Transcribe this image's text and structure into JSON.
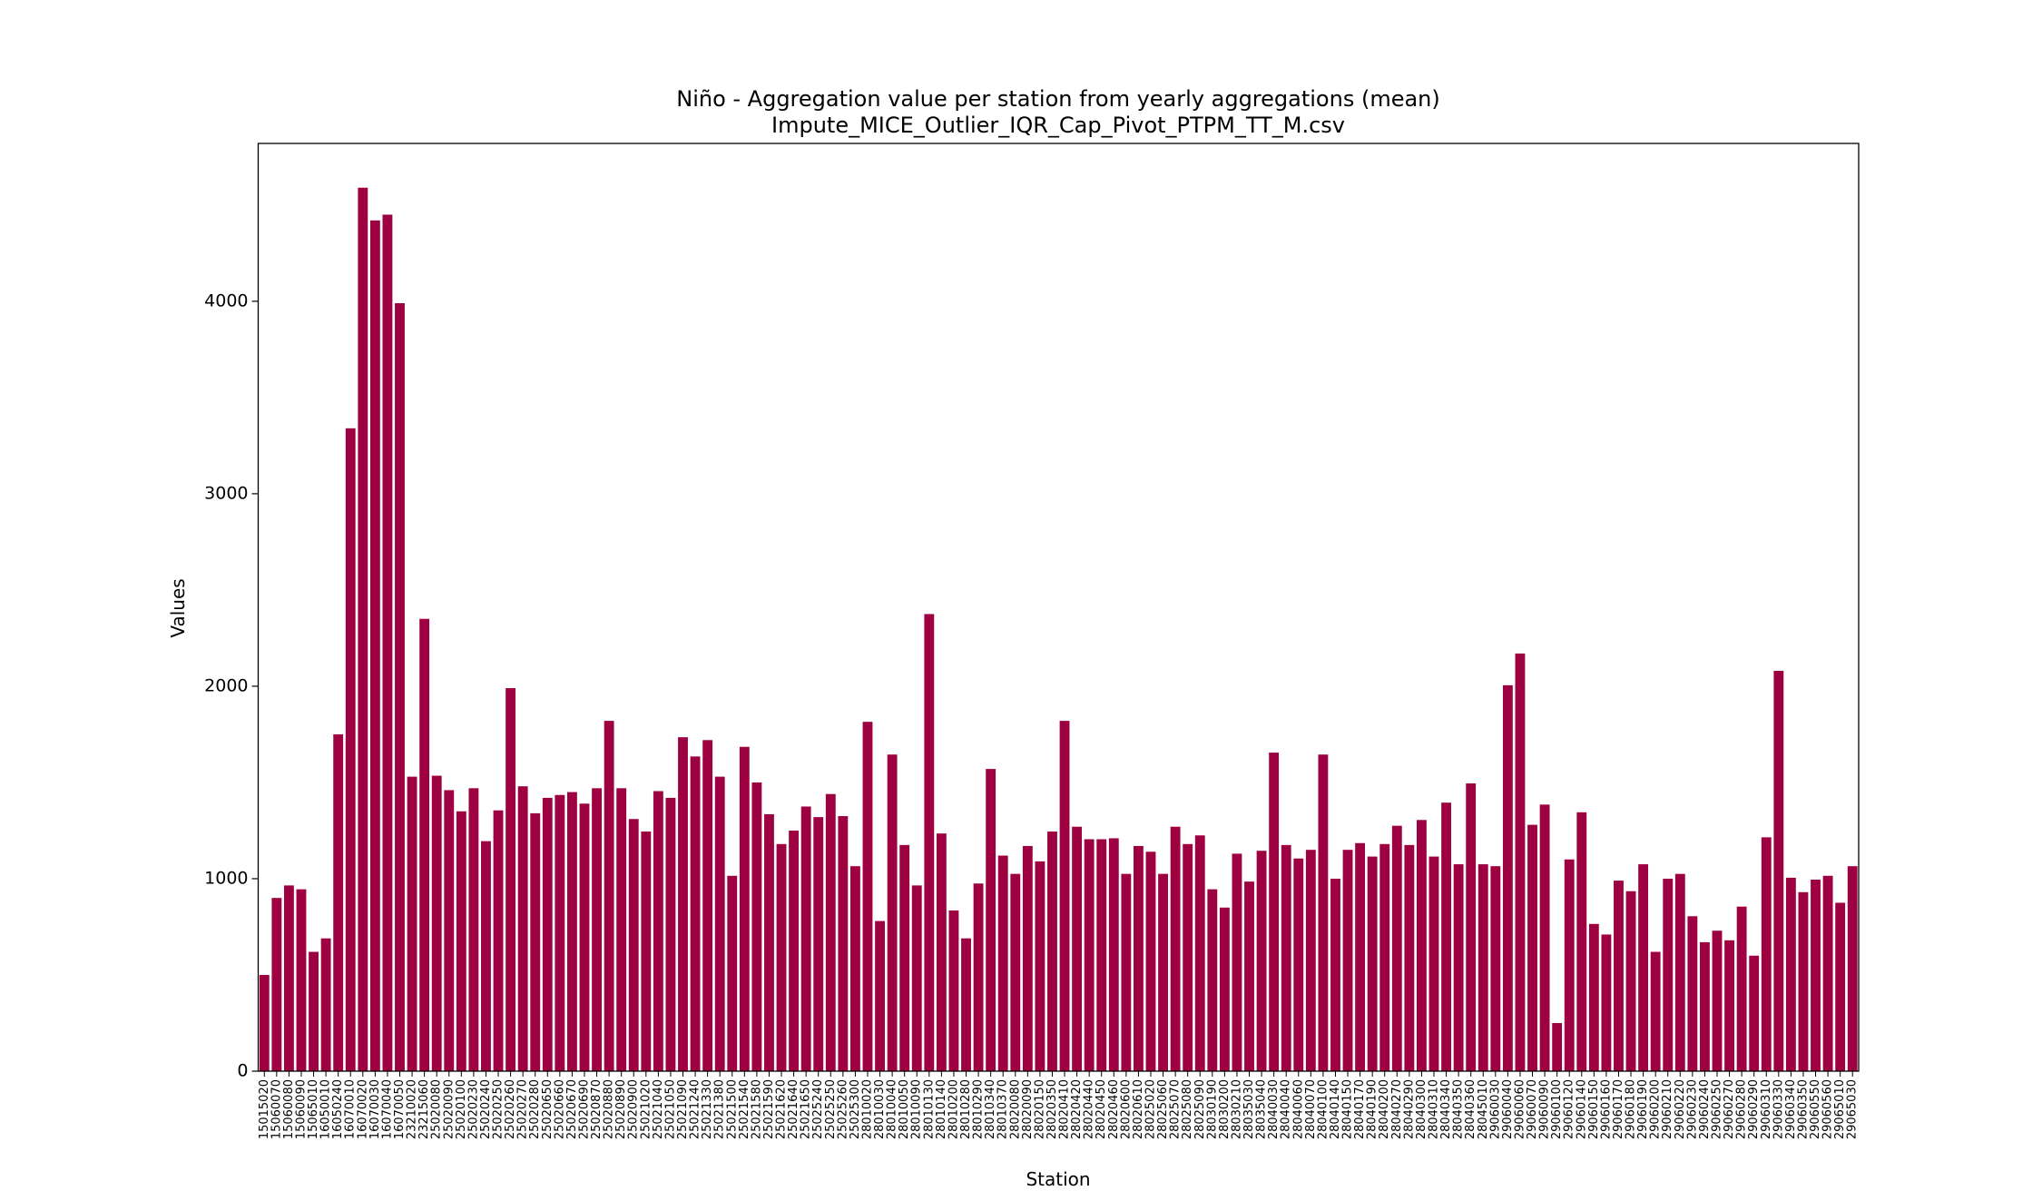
{
  "chart_data": {
    "type": "bar",
    "title": "Niño - Aggregation value per station from yearly aggregations (mean)",
    "subtitle": "Impute_MICE_Outlier_IQR_Cap_Pivot_PTPM_TT_M.csv",
    "xlabel": "Station",
    "ylabel": "Values",
    "color": "#9e0142",
    "ylim": [
      0,
      4820
    ],
    "yticks": [
      0,
      1000,
      2000,
      3000,
      4000
    ],
    "grid": false,
    "categories": [
      "15015020",
      "15060070",
      "15060080",
      "15060090",
      "15065010",
      "16050010",
      "16050240",
      "16070010",
      "16070020",
      "16070030",
      "16070040",
      "16070050",
      "23210020",
      "23215060",
      "25020080",
      "25020090",
      "25020100",
      "25020230",
      "25020240",
      "25020250",
      "25020260",
      "25020270",
      "25020280",
      "25020650",
      "25020660",
      "25020670",
      "25020690",
      "25020870",
      "25020880",
      "25020890",
      "25020900",
      "25021020",
      "25021040",
      "25021050",
      "25021090",
      "25021240",
      "25021330",
      "25021380",
      "25021500",
      "25021540",
      "25021580",
      "25021590",
      "25021620",
      "25021640",
      "25021650",
      "25025240",
      "25025250",
      "25025260",
      "25025300",
      "28010020",
      "28010030",
      "28010040",
      "28010050",
      "28010090",
      "28010130",
      "28010140",
      "28010200",
      "28010280",
      "28010290",
      "28010340",
      "28010370",
      "28020080",
      "28020090",
      "28020150",
      "28020350",
      "28020410",
      "28020420",
      "28020440",
      "28020450",
      "28020460",
      "28020600",
      "28020610",
      "28025020",
      "28025060",
      "28025070",
      "28025080",
      "28025090",
      "28030190",
      "28030200",
      "28030210",
      "28035030",
      "28035040",
      "28040030",
      "28040040",
      "28040060",
      "28040070",
      "28040100",
      "28040140",
      "28040150",
      "28040170",
      "28040190",
      "28040200",
      "28040270",
      "28040290",
      "28040300",
      "28040310",
      "28040340",
      "28040350",
      "28040360",
      "28045010",
      "29060030",
      "29060040",
      "29060060",
      "29060070",
      "29060090",
      "29060100",
      "29060120",
      "29060140",
      "29060150",
      "29060160",
      "29060170",
      "29060180",
      "29060190",
      "29060200",
      "29060210",
      "29060220",
      "29060230",
      "29060240",
      "29060250",
      "29060270",
      "29060280",
      "29060290",
      "29060310",
      "29060330",
      "29060340",
      "29060350",
      "29060550",
      "29060560",
      "29065010",
      "29065030"
    ],
    "values": [
      500,
      900,
      965,
      945,
      620,
      690,
      1750,
      3340,
      4590,
      4420,
      4450,
      3990,
      1530,
      2350,
      1535,
      1460,
      1350,
      1470,
      1195,
      1355,
      1990,
      1480,
      1340,
      1420,
      1435,
      1450,
      1390,
      1470,
      1820,
      1470,
      1310,
      1245,
      1455,
      1420,
      1735,
      1635,
      1720,
      1530,
      1015,
      1685,
      1500,
      1335,
      1180,
      1250,
      1375,
      1320,
      1440,
      1325,
      1065,
      1815,
      780,
      1645,
      1175,
      965,
      2375,
      1235,
      835,
      690,
      975,
      1570,
      1120,
      1025,
      1170,
      1090,
      1245,
      1820,
      1270,
      1205,
      1205,
      1210,
      1025,
      1170,
      1140,
      1025,
      1270,
      1180,
      1225,
      945,
      850,
      1130,
      985,
      1145,
      1655,
      1175,
      1105,
      1150,
      1645,
      1000,
      1150,
      1185,
      1115,
      1180,
      1275,
      1175,
      1305,
      1115,
      1395,
      1075,
      1495,
      1075,
      1065,
      2005,
      2170,
      1280,
      1385,
      250,
      1100,
      1345,
      765,
      710,
      990,
      935,
      1075,
      620,
      1000,
      1025,
      805,
      670,
      730,
      680,
      855,
      600,
      1215,
      2080,
      1005,
      930,
      995,
      1015,
      875,
      1065
    ]
  }
}
